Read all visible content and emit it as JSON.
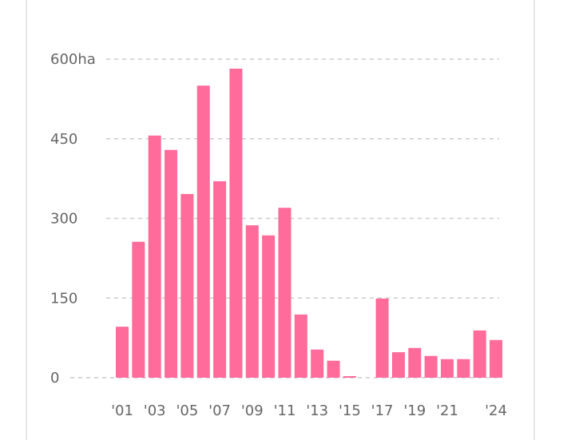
{
  "chart_data": {
    "type": "bar",
    "title": "",
    "xlabel": "",
    "ylabel": "",
    "ylim": [
      0,
      600
    ],
    "yticks": [
      0,
      150,
      300,
      450,
      600
    ],
    "ytick_labels": [
      "0",
      "150",
      "300",
      "450",
      "600ha"
    ],
    "grid": true,
    "categories": [
      "2001",
      "2002",
      "2003",
      "2004",
      "2005",
      "2006",
      "2007",
      "2008",
      "2009",
      "2010",
      "2011",
      "2012",
      "2013",
      "2014",
      "2015",
      "2016",
      "2017",
      "2018",
      "2019",
      "2020",
      "2021",
      "2022",
      "2023",
      "2024"
    ],
    "xtick_labels": [
      "'01",
      "",
      "'03",
      "",
      "'05",
      "",
      "'07",
      "",
      "'09",
      "",
      "'11",
      "",
      "'13",
      "",
      "'15",
      "",
      "'17",
      "",
      "'19",
      "",
      "'21",
      "",
      "",
      "'24"
    ],
    "values": [
      96,
      256,
      456,
      429,
      346,
      550,
      370,
      582,
      287,
      268,
      320,
      119,
      53,
      32,
      3,
      0,
      149,
      48,
      56,
      41,
      35,
      35,
      89,
      71
    ],
    "bar_color": "#ff6b9b",
    "grid_color": "#cccccc"
  }
}
